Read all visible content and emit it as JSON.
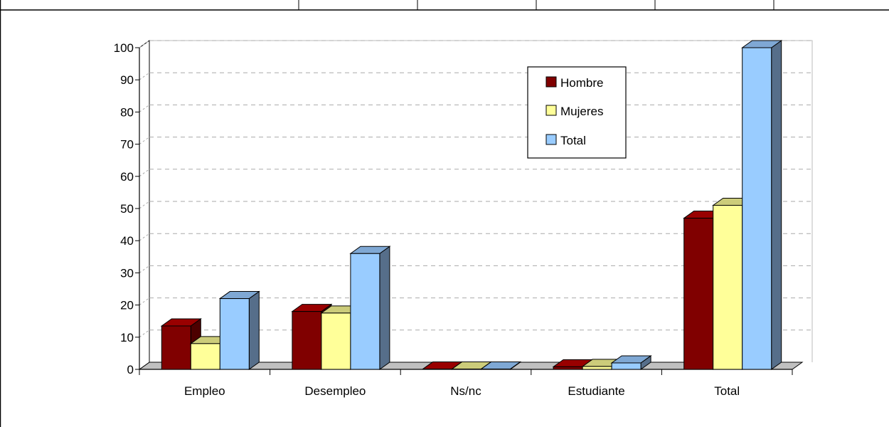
{
  "chart_data": {
    "type": "bar",
    "categories": [
      "Empleo",
      "Desempleo",
      "Ns/nc",
      "Estudiante",
      "Total"
    ],
    "series": [
      {
        "name": "Hombre",
        "values": [
          13.5,
          18.0,
          0.1,
          0.8,
          47.0
        ]
      },
      {
        "name": "Mujeres",
        "values": [
          8.0,
          17.5,
          0.1,
          0.9,
          51.0
        ]
      },
      {
        "name": "Total",
        "values": [
          22.0,
          36.0,
          0.1,
          2.0,
          100.0
        ]
      }
    ],
    "ylim": [
      0,
      100
    ],
    "yticks": [
      0,
      10,
      20,
      30,
      40,
      50,
      60,
      70,
      80,
      90,
      100
    ],
    "grid": true,
    "legend_position": "top-right",
    "colors": {
      "Hombre": {
        "front": "#800000",
        "side": "#4d0000",
        "top": "#990000"
      },
      "Mujeres": {
        "front": "#ffff99",
        "side": "#b3b36b",
        "top": "#cccc7a"
      },
      "Total": {
        "front": "#99ccff",
        "side": "#566e8a",
        "top": "#7fa8d4"
      }
    }
  }
}
